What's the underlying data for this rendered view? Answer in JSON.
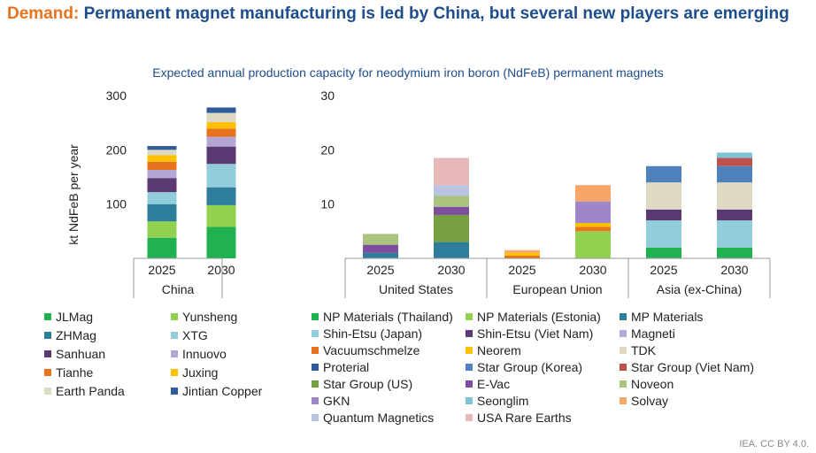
{
  "title": {
    "keyword": "Demand:",
    "text": "Permanent magnet manufacturing is led by China, but several new players are emerging"
  },
  "subtitle": "Expected annual production capacity for neodymium iron boron (NdFeB) permanent magnets",
  "credit": "IEA. CC BY 4.0.",
  "chart_data": [
    {
      "type": "bar",
      "stacked": true,
      "ylabel": "kt NdFeB per year",
      "ylim": [
        0,
        300
      ],
      "yticks": [
        100,
        200,
        300
      ],
      "groups": [
        {
          "label": "China",
          "categories": [
            "2025",
            "2030"
          ],
          "stacks": [
            {
              "category": "2025",
              "segments": [
                {
                  "name": "JLMag",
                  "value": 38
                },
                {
                  "name": "Yunsheng",
                  "value": 30
                },
                {
                  "name": "ZHMag",
                  "value": 32
                },
                {
                  "name": "XTG",
                  "value": 22
                },
                {
                  "name": "Sanhuan",
                  "value": 26
                },
                {
                  "name": "Innuovo",
                  "value": 15
                },
                {
                  "name": "Tianhe",
                  "value": 15
                },
                {
                  "name": "Juxing",
                  "value": 12
                },
                {
                  "name": "Earth Panda",
                  "value": 10
                },
                {
                  "name": "Jintian Copper",
                  "value": 7
                }
              ]
            },
            {
              "category": "2030",
              "segments": [
                {
                  "name": "JLMag",
                  "value": 58
                },
                {
                  "name": "Yunsheng",
                  "value": 40
                },
                {
                  "name": "ZHMag",
                  "value": 33
                },
                {
                  "name": "XTG",
                  "value": 43
                },
                {
                  "name": "Sanhuan",
                  "value": 32
                },
                {
                  "name": "Innuovo",
                  "value": 18
                },
                {
                  "name": "Tianhe",
                  "value": 15
                },
                {
                  "name": "Juxing",
                  "value": 12
                },
                {
                  "name": "Earth Panda",
                  "value": 17
                },
                {
                  "name": "Jintian Copper",
                  "value": 10
                }
              ]
            }
          ]
        }
      ]
    },
    {
      "type": "bar",
      "stacked": true,
      "ylim": [
        0,
        30
      ],
      "yticks": [
        10,
        20,
        30
      ],
      "groups": [
        {
          "label": "United States",
          "categories": [
            "2025",
            "2030"
          ],
          "stacks": [
            {
              "category": "2025",
              "segments": [
                {
                  "name": "MP Materials",
                  "value": 1
                },
                {
                  "name": "E-Vac",
                  "value": 1.5
                },
                {
                  "name": "Noveon",
                  "value": 2
                }
              ]
            },
            {
              "category": "2030",
              "segments": [
                {
                  "name": "MP Materials",
                  "value": 3
                },
                {
                  "name": "Star Group (US)",
                  "value": 5
                },
                {
                  "name": "E-Vac",
                  "value": 1.5
                },
                {
                  "name": "Noveon",
                  "value": 2
                },
                {
                  "name": "Quantum Magnetics",
                  "value": 2
                },
                {
                  "name": "USA Rare Earths",
                  "value": 5
                }
              ]
            }
          ]
        },
        {
          "label": "European Union",
          "categories": [
            "2025",
            "2030"
          ],
          "stacks": [
            {
              "category": "2025",
              "segments": [
                {
                  "name": "Vacuumschmelze",
                  "value": 0.5
                },
                {
                  "name": "Neorem",
                  "value": 0.5
                },
                {
                  "name": "Solvay",
                  "value": 0.5
                }
              ]
            },
            {
              "category": "2030",
              "segments": [
                {
                  "name": "NP Materials (Estonia)",
                  "value": 5
                },
                {
                  "name": "Vacuumschmelze",
                  "value": 0.8
                },
                {
                  "name": "Neorem",
                  "value": 0.7
                },
                {
                  "name": "GKN",
                  "value": 4
                },
                {
                  "name": "Solvay",
                  "value": 3
                }
              ]
            }
          ]
        },
        {
          "label": "Asia (ex-China)",
          "categories": [
            "2025",
            "2030"
          ],
          "stacks": [
            {
              "category": "2025",
              "segments": [
                {
                  "name": "NP Materials (Thailand)",
                  "value": 2
                },
                {
                  "name": "Shin-Etsu (Japan)",
                  "value": 5
                },
                {
                  "name": "Shin-Etsu (Viet Nam)",
                  "value": 2
                },
                {
                  "name": "TDK",
                  "value": 5
                },
                {
                  "name": "Star Group (Korea)",
                  "value": 3
                }
              ]
            },
            {
              "category": "2030",
              "segments": [
                {
                  "name": "NP Materials (Thailand)",
                  "value": 2
                },
                {
                  "name": "Shin-Etsu (Japan)",
                  "value": 5
                },
                {
                  "name": "Shin-Etsu (Viet Nam)",
                  "value": 2
                },
                {
                  "name": "TDK",
                  "value": 5
                },
                {
                  "name": "Star Group (Korea)",
                  "value": 3
                },
                {
                  "name": "Star Group (Viet Nam)",
                  "value": 1.5
                },
                {
                  "name": "Seonglim",
                  "value": 1
                }
              ]
            }
          ]
        }
      ]
    }
  ],
  "legend_china": [
    {
      "name": "JLMag",
      "color": "#20b150"
    },
    {
      "name": "Yunsheng",
      "color": "#92d050"
    },
    {
      "name": "ZHMag",
      "color": "#2e7d9a"
    },
    {
      "name": "XTG",
      "color": "#92cddc"
    },
    {
      "name": "Sanhuan",
      "color": "#5b3a73"
    },
    {
      "name": "Innuovo",
      "color": "#b4a7d6"
    },
    {
      "name": "Tianhe",
      "color": "#e8731e"
    },
    {
      "name": "Juxing",
      "color": "#ffc000"
    },
    {
      "name": "Earth Panda",
      "color": "#ddd9c3"
    },
    {
      "name": "Jintian Copper",
      "color": "#2e5c9a"
    }
  ],
  "legend_other": [
    {
      "name": "NP Materials (Thailand)",
      "color": "#20b150"
    },
    {
      "name": "NP Materials (Estonia)",
      "color": "#92d050"
    },
    {
      "name": "MP Materials",
      "color": "#2e7d9a"
    },
    {
      "name": "Shin-Etsu (Japan)",
      "color": "#92cddc"
    },
    {
      "name": "Shin-Etsu (Viet Nam)",
      "color": "#5b3a73"
    },
    {
      "name": "Magneti",
      "color": "#b4a7d6"
    },
    {
      "name": "Vacuumschmelze",
      "color": "#e8731e"
    },
    {
      "name": "Neorem",
      "color": "#ffc000"
    },
    {
      "name": "TDK",
      "color": "#ddd9c3"
    },
    {
      "name": "Proterial",
      "color": "#2e5c9a"
    },
    {
      "name": "Star Group (Korea)",
      "color": "#4f81bd"
    },
    {
      "name": "Star Group (Viet Nam)",
      "color": "#c0504d"
    },
    {
      "name": "Star Group (US)",
      "color": "#77a043"
    },
    {
      "name": "E-Vac",
      "color": "#7d4e9e"
    },
    {
      "name": "Noveon",
      "color": "#a9c47f"
    },
    {
      "name": "GKN",
      "color": "#9e86c8"
    },
    {
      "name": "Seonglim",
      "color": "#7ec4d4"
    },
    {
      "name": "Solvay",
      "color": "#f8a56a"
    },
    {
      "name": "Quantum Magnetics",
      "color": "#b8c4e0"
    },
    {
      "name": "USA Rare Earths",
      "color": "#e6b8b7"
    }
  ]
}
